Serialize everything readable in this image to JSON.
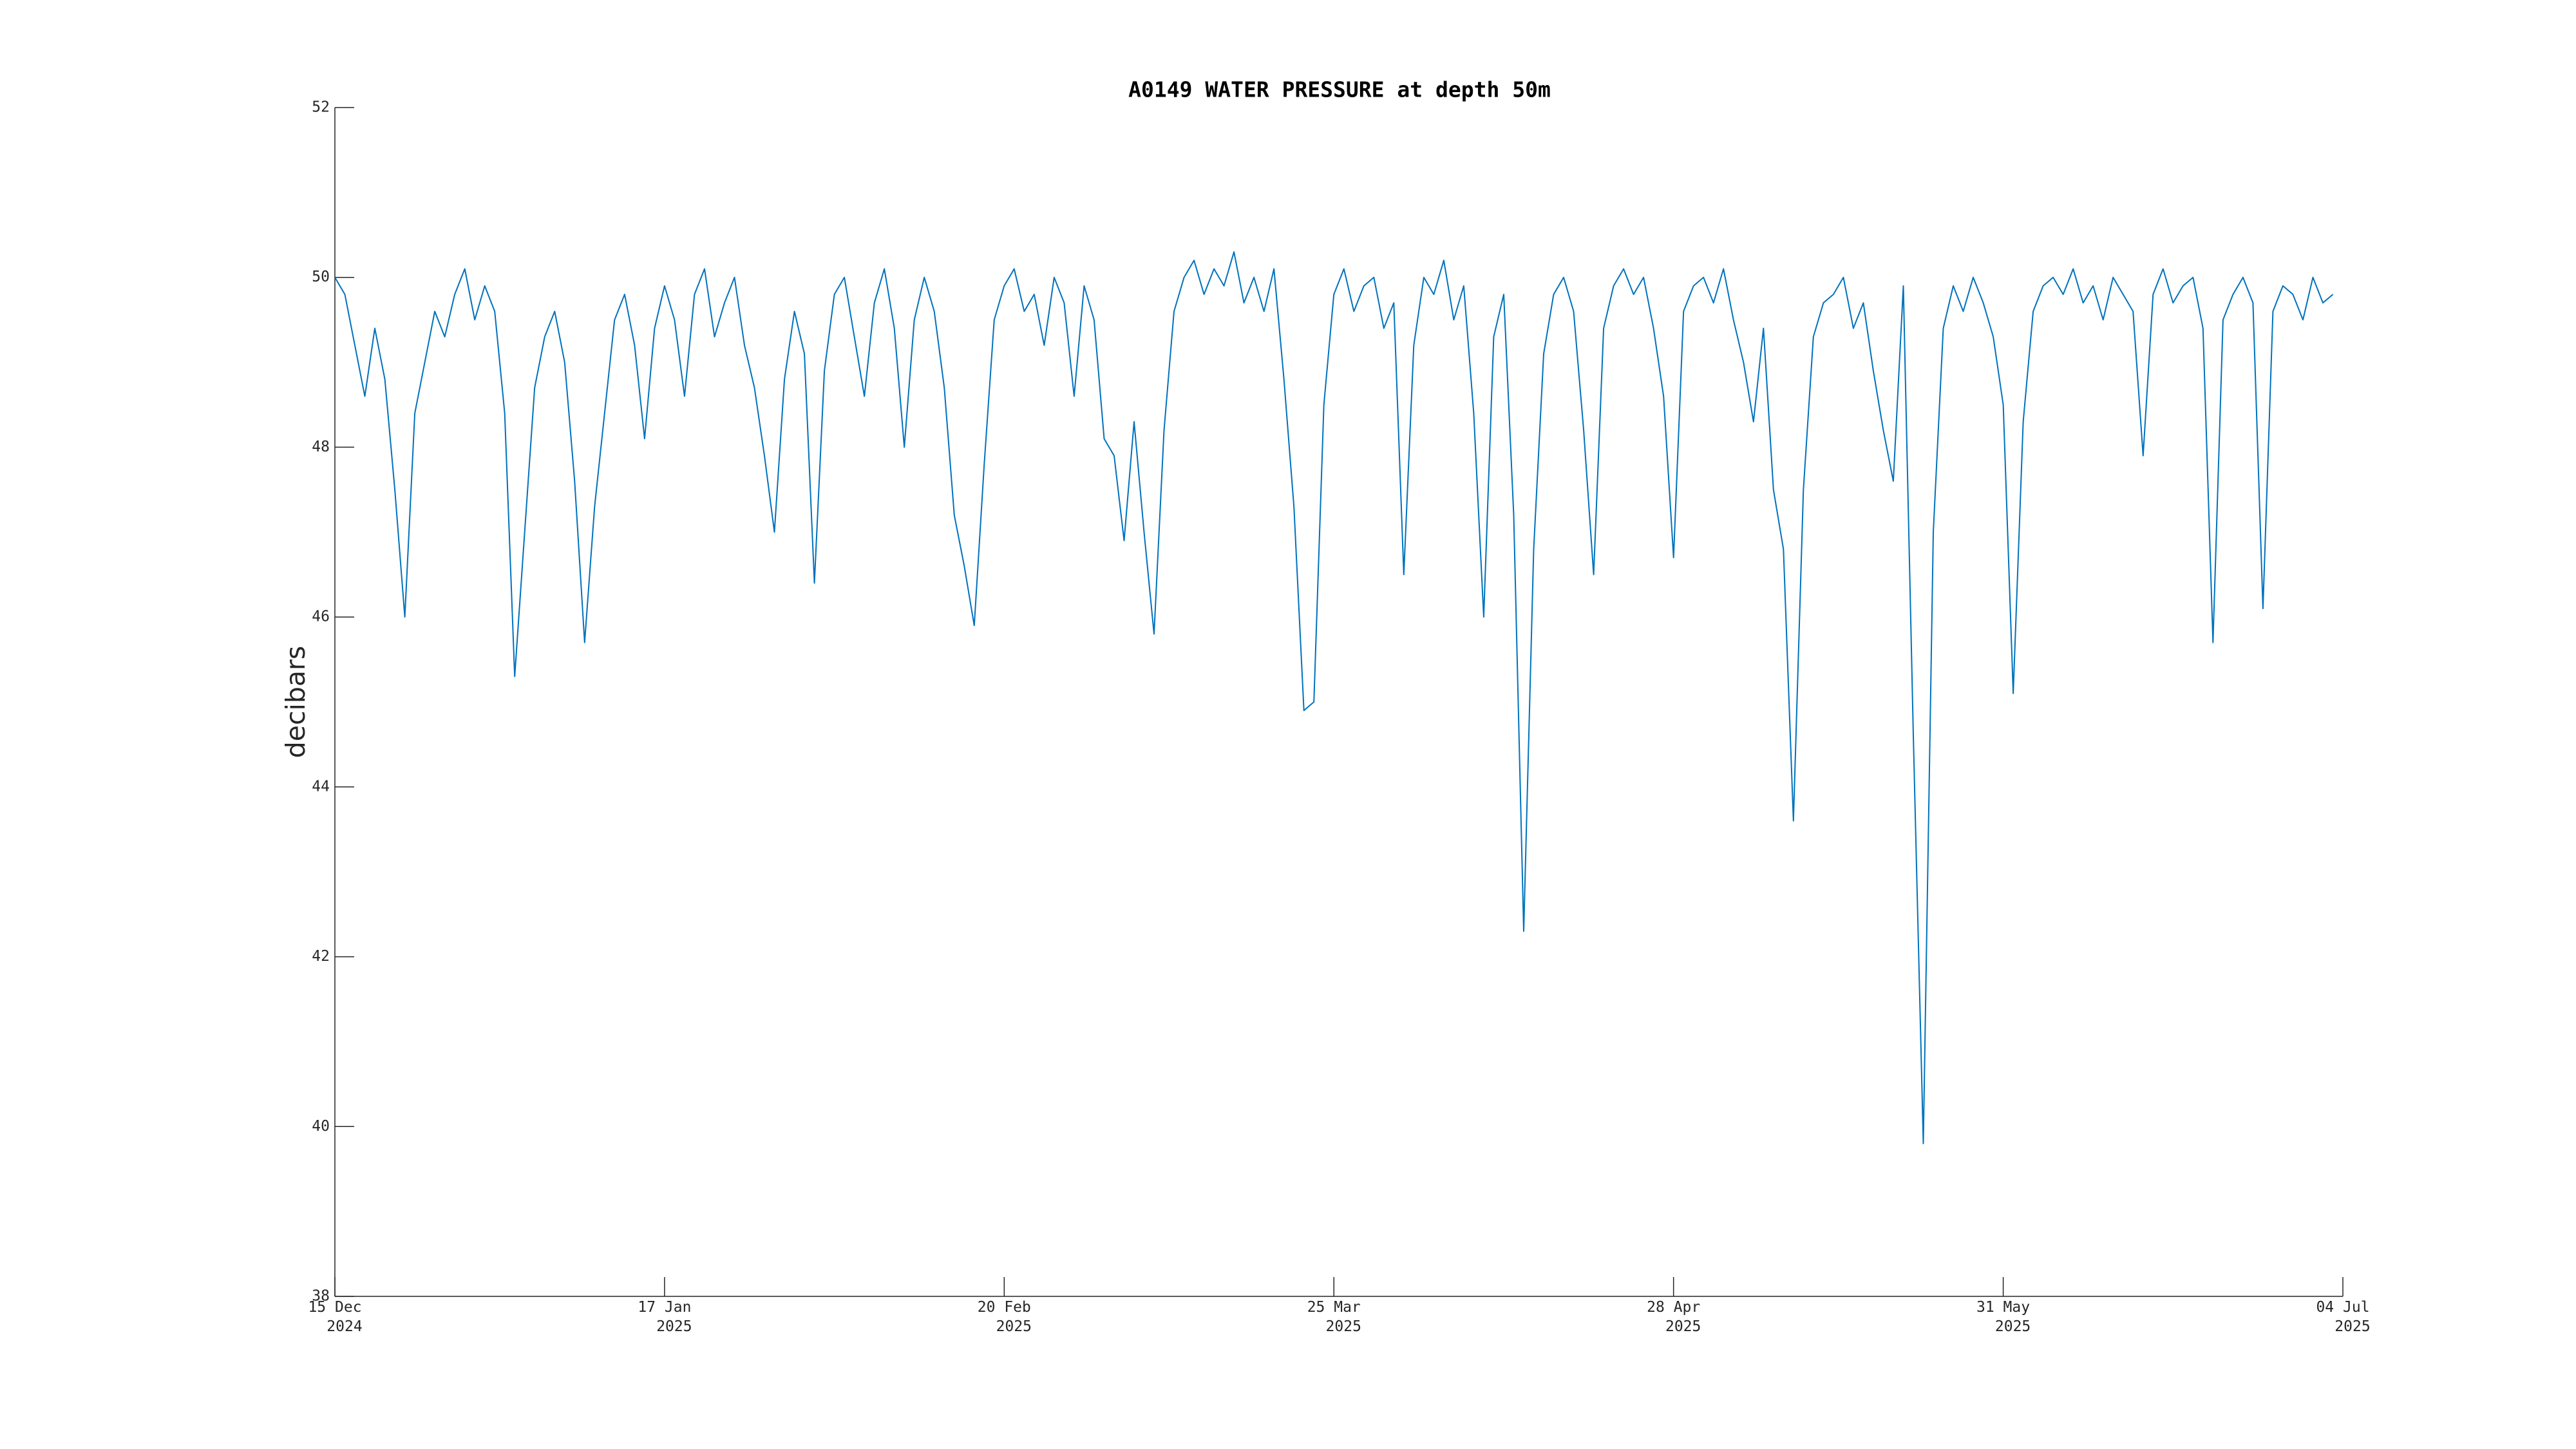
{
  "chart_data": {
    "type": "line",
    "title": "A0149 WATER PRESSURE at depth 50m",
    "y_label": "decibars",
    "color": "#0072bd",
    "x": [
      "2024-12-15",
      "2024-12-16",
      "2024-12-17",
      "2024-12-18",
      "2024-12-19",
      "2024-12-20",
      "2024-12-21",
      "2024-12-22",
      "2024-12-23",
      "2024-12-24",
      "2024-12-25",
      "2024-12-26",
      "2024-12-27",
      "2024-12-28",
      "2024-12-29",
      "2024-12-30",
      "2024-12-31",
      "2025-01-01",
      "2025-01-02",
      "2025-01-03",
      "2025-01-04",
      "2025-01-05",
      "2025-01-06",
      "2025-01-07",
      "2025-01-08",
      "2025-01-09",
      "2025-01-10",
      "2025-01-11",
      "2025-01-12",
      "2025-01-13",
      "2025-01-14",
      "2025-01-15",
      "2025-01-16",
      "2025-01-17",
      "2025-01-18",
      "2025-01-19",
      "2025-01-20",
      "2025-01-21",
      "2025-01-22",
      "2025-01-23",
      "2025-01-24",
      "2025-01-25",
      "2025-01-26",
      "2025-01-27",
      "2025-01-28",
      "2025-01-29",
      "2025-01-30",
      "2025-01-31",
      "2025-02-01",
      "2025-02-02",
      "2025-02-03",
      "2025-02-04",
      "2025-02-05",
      "2025-02-06",
      "2025-02-07",
      "2025-02-08",
      "2025-02-09",
      "2025-02-10",
      "2025-02-11",
      "2025-02-12",
      "2025-02-13",
      "2025-02-14",
      "2025-02-15",
      "2025-02-16",
      "2025-02-17",
      "2025-02-18",
      "2025-02-19",
      "2025-02-20",
      "2025-02-21",
      "2025-02-22",
      "2025-02-23",
      "2025-02-24",
      "2025-02-25",
      "2025-02-26",
      "2025-02-27",
      "2025-02-28",
      "2025-03-01",
      "2025-03-02",
      "2025-03-03",
      "2025-03-04",
      "2025-03-05",
      "2025-03-06",
      "2025-03-07",
      "2025-03-08",
      "2025-03-09",
      "2025-03-10",
      "2025-03-11",
      "2025-03-12",
      "2025-03-13",
      "2025-03-14",
      "2025-03-15",
      "2025-03-16",
      "2025-03-17",
      "2025-03-18",
      "2025-03-19",
      "2025-03-20",
      "2025-03-21",
      "2025-03-22",
      "2025-03-23",
      "2025-03-24",
      "2025-03-25",
      "2025-03-26",
      "2025-03-27",
      "2025-03-28",
      "2025-03-29",
      "2025-03-30",
      "2025-03-31",
      "2025-04-01",
      "2025-04-02",
      "2025-04-03",
      "2025-04-04",
      "2025-04-05",
      "2025-04-06",
      "2025-04-07",
      "2025-04-08",
      "2025-04-09",
      "2025-04-10",
      "2025-04-11",
      "2025-04-12",
      "2025-04-13",
      "2025-04-14",
      "2025-04-15",
      "2025-04-16",
      "2025-04-17",
      "2025-04-18",
      "2025-04-19",
      "2025-04-20",
      "2025-04-21",
      "2025-04-22",
      "2025-04-23",
      "2025-04-24",
      "2025-04-25",
      "2025-04-26",
      "2025-04-27",
      "2025-04-28",
      "2025-04-29",
      "2025-04-30",
      "2025-05-01",
      "2025-05-02",
      "2025-05-03",
      "2025-05-04",
      "2025-05-05",
      "2025-05-06",
      "2025-05-07",
      "2025-05-08",
      "2025-05-09",
      "2025-05-10",
      "2025-05-11",
      "2025-05-12",
      "2025-05-13",
      "2025-05-14",
      "2025-05-15",
      "2025-05-16",
      "2025-05-17",
      "2025-05-18",
      "2025-05-19",
      "2025-05-20",
      "2025-05-21",
      "2025-05-22",
      "2025-05-23",
      "2025-05-24",
      "2025-05-25",
      "2025-05-26",
      "2025-05-27",
      "2025-05-28",
      "2025-05-29",
      "2025-05-30",
      "2025-05-31",
      "2025-06-01",
      "2025-06-02",
      "2025-06-03",
      "2025-06-04",
      "2025-06-05",
      "2025-06-06",
      "2025-06-07",
      "2025-06-08",
      "2025-06-09",
      "2025-06-10",
      "2025-06-11",
      "2025-06-12",
      "2025-06-13",
      "2025-06-14",
      "2025-06-15",
      "2025-06-16",
      "2025-06-17",
      "2025-06-18",
      "2025-06-19",
      "2025-06-20",
      "2025-06-21",
      "2025-06-22",
      "2025-06-23",
      "2025-06-24",
      "2025-06-25",
      "2025-06-26",
      "2025-06-27",
      "2025-06-28",
      "2025-06-29",
      "2025-06-30",
      "2025-07-01",
      "2025-07-02",
      "2025-07-03"
    ],
    "values": [
      50.0,
      49.8,
      49.2,
      48.6,
      49.4,
      48.8,
      47.5,
      46.0,
      48.4,
      49.0,
      49.6,
      49.3,
      49.8,
      50.1,
      49.5,
      49.9,
      49.6,
      48.4,
      45.3,
      47.0,
      48.7,
      49.3,
      49.6,
      49.0,
      47.6,
      45.7,
      47.3,
      48.4,
      49.5,
      49.8,
      49.2,
      48.1,
      49.4,
      49.9,
      49.5,
      48.6,
      49.8,
      50.1,
      49.3,
      49.7,
      50.0,
      49.2,
      48.7,
      47.9,
      47.0,
      48.8,
      49.6,
      49.1,
      46.4,
      48.9,
      49.8,
      50.0,
      49.3,
      48.6,
      49.7,
      50.1,
      49.4,
      48.0,
      49.5,
      50.0,
      49.6,
      48.7,
      47.2,
      46.6,
      45.9,
      47.8,
      49.5,
      49.9,
      50.1,
      49.6,
      49.8,
      49.2,
      50.0,
      49.7,
      48.6,
      49.9,
      49.5,
      48.1,
      47.9,
      46.9,
      48.3,
      47.0,
      45.8,
      48.2,
      49.6,
      50.0,
      50.2,
      49.8,
      50.1,
      49.9,
      50.3,
      49.7,
      50.0,
      49.6,
      50.1,
      48.8,
      47.3,
      44.9,
      45.0,
      48.5,
      49.8,
      50.1,
      49.6,
      49.9,
      50.0,
      49.4,
      49.7,
      46.5,
      49.2,
      50.0,
      49.8,
      50.2,
      49.5,
      49.9,
      48.4,
      46.0,
      49.3,
      49.8,
      47.2,
      42.3,
      46.8,
      49.1,
      49.8,
      50.0,
      49.6,
      48.2,
      46.5,
      49.4,
      49.9,
      50.1,
      49.8,
      50.0,
      49.4,
      48.6,
      46.7,
      49.6,
      49.9,
      50.0,
      49.7,
      50.1,
      49.5,
      49.0,
      48.3,
      49.4,
      47.5,
      46.8,
      43.6,
      47.5,
      49.3,
      49.7,
      49.8,
      50.0,
      49.4,
      49.7,
      48.9,
      48.2,
      47.6,
      49.9,
      44.6,
      39.8,
      47.0,
      49.4,
      49.9,
      49.6,
      50.0,
      49.7,
      49.3,
      48.5,
      45.1,
      48.3,
      49.6,
      49.9,
      50.0,
      49.8,
      50.1,
      49.7,
      49.9,
      49.5,
      50.0,
      49.8,
      49.6,
      47.9,
      49.8,
      50.1,
      49.7,
      49.9,
      50.0,
      49.4,
      45.7,
      49.5,
      49.8,
      50.0,
      49.7,
      46.1,
      49.6,
      49.9,
      49.8,
      49.5,
      50.0,
      49.7,
      49.8
    ],
    "xlim": [
      "2024-12-15",
      "2025-07-04"
    ],
    "xticks": [
      {
        "value": "2024-12-15",
        "label": "15 Dec 2024"
      },
      {
        "value": "2025-01-17",
        "label": "17 Jan 2025"
      },
      {
        "value": "2025-02-20",
        "label": "20 Feb 2025"
      },
      {
        "value": "2025-03-25",
        "label": "25 Mar 2025"
      },
      {
        "value": "2025-04-28",
        "label": "28 Apr 2025"
      },
      {
        "value": "2025-05-31",
        "label": "31 May 2025"
      },
      {
        "value": "2025-07-04",
        "label": "04 Jul 2025"
      }
    ],
    "ylim": [
      38,
      52
    ],
    "yticks": [
      38,
      40,
      42,
      44,
      46,
      48,
      50,
      52
    ],
    "grid": false
  }
}
